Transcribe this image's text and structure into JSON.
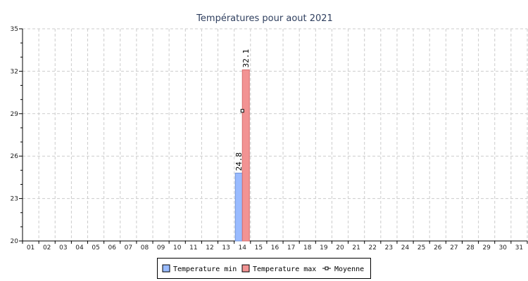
{
  "chart_data": {
    "type": "bar",
    "title": "Températures pour aout 2021",
    "xlabel": "",
    "ylabel": "",
    "ylim": [
      20,
      35
    ],
    "y_ticks": [
      20,
      23,
      26,
      29,
      32,
      35
    ],
    "grid": true,
    "legend_position": "bottom-center",
    "categories": [
      "01",
      "02",
      "03",
      "04",
      "05",
      "06",
      "07",
      "08",
      "09",
      "10",
      "11",
      "12",
      "13",
      "14",
      "15",
      "16",
      "17",
      "18",
      "19",
      "20",
      "21",
      "22",
      "23",
      "24",
      "25",
      "26",
      "27",
      "28",
      "29",
      "30",
      "31"
    ],
    "series": [
      {
        "name": "Temperature min",
        "kind": "bar",
        "color": "#99bbff",
        "edge": "#6f93d8",
        "values": [
          null,
          null,
          null,
          null,
          null,
          null,
          null,
          null,
          null,
          null,
          null,
          null,
          null,
          24.8,
          null,
          null,
          null,
          null,
          null,
          null,
          null,
          null,
          null,
          null,
          null,
          null,
          null,
          null,
          null,
          null,
          null
        ],
        "labels": [
          null,
          null,
          null,
          null,
          null,
          null,
          null,
          null,
          null,
          null,
          null,
          null,
          null,
          "24.8",
          null,
          null,
          null,
          null,
          null,
          null,
          null,
          null,
          null,
          null,
          null,
          null,
          null,
          null,
          null,
          null,
          null
        ]
      },
      {
        "name": "Temperature max",
        "kind": "bar",
        "color": "#f29393",
        "edge": "#d66d6d",
        "values": [
          null,
          null,
          null,
          null,
          null,
          null,
          null,
          null,
          null,
          null,
          null,
          null,
          null,
          32.1,
          null,
          null,
          null,
          null,
          null,
          null,
          null,
          null,
          null,
          null,
          null,
          null,
          null,
          null,
          null,
          null,
          null
        ],
        "labels": [
          null,
          null,
          null,
          null,
          null,
          null,
          null,
          null,
          null,
          null,
          null,
          null,
          null,
          "32.1",
          null,
          null,
          null,
          null,
          null,
          null,
          null,
          null,
          null,
          null,
          null,
          null,
          null,
          null,
          null,
          null,
          null
        ]
      },
      {
        "name": "Moyenne",
        "kind": "marker",
        "color": "#000000",
        "values": [
          null,
          null,
          null,
          null,
          null,
          null,
          null,
          null,
          null,
          null,
          null,
          null,
          null,
          29.2,
          null,
          null,
          null,
          null,
          null,
          null,
          null,
          null,
          null,
          null,
          null,
          null,
          null,
          null,
          null,
          null,
          null
        ]
      }
    ]
  }
}
